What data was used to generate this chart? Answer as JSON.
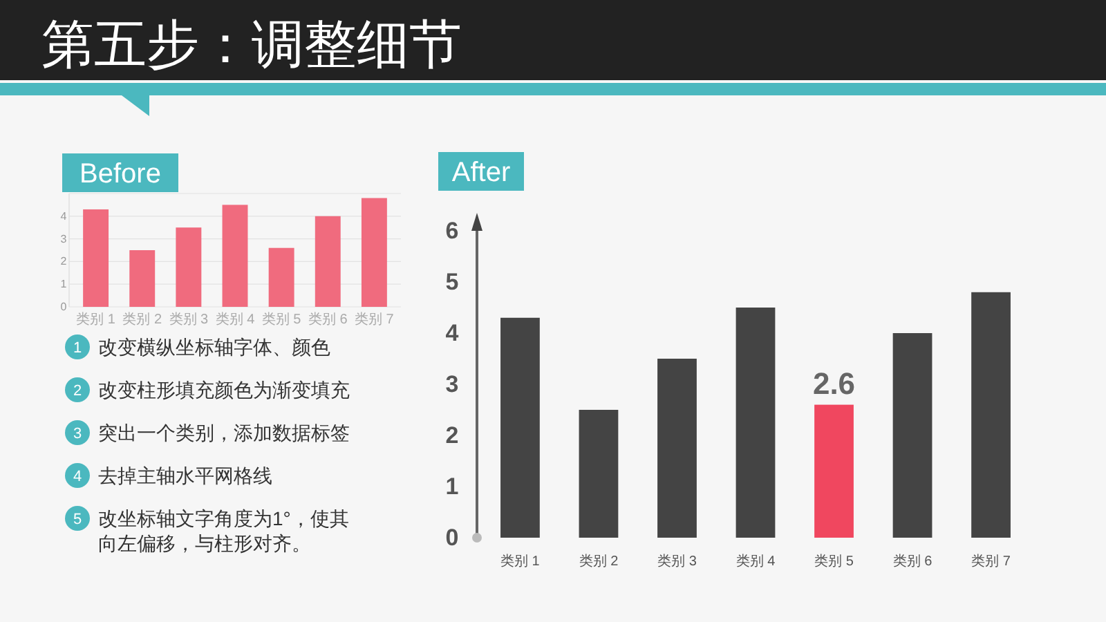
{
  "chart_data": [
    {
      "type": "other",
      "title": "第五步：调整细节"
    },
    {
      "type": "bar",
      "title": "Before",
      "categories": [
        "类别 1",
        "类别 2",
        "类别 3",
        "类别 4",
        "类别 5",
        "类别 6",
        "类别 7"
      ],
      "values": [
        4.3,
        2.5,
        3.5,
        4.5,
        2.6,
        4.0,
        4.8
      ],
      "color": "#f06b7e",
      "ylim": [
        0,
        5
      ],
      "yticks": [
        0,
        1,
        2,
        3,
        4
      ],
      "grid": "y",
      "annotations": [
        "1",
        "改变横纵坐标轴字体、颜色",
        "2",
        "改变柱形填充颜色为渐变填充",
        "3",
        "突出一个类别，添加数据标签",
        "4",
        "去掉主轴水平网格线",
        "5",
        "改坐标轴文字角度为1°，使其向左偏移，与柱形对齐。"
      ]
    },
    {
      "type": "bar",
      "title": "After",
      "categories": [
        "类别 1",
        "类别 2",
        "类别 3",
        "类别 4",
        "类别 5",
        "类别 6",
        "类别 7"
      ],
      "values": [
        4.3,
        2.5,
        3.5,
        4.5,
        2.6,
        4.0,
        4.8
      ],
      "colors": [
        "#444444",
        "#444444",
        "#444444",
        "#444444",
        "#f0475f",
        "#444444",
        "#444444"
      ],
      "value_labels": [
        null,
        null,
        null,
        null,
        "2.6",
        null,
        null
      ],
      "ylim": [
        0,
        6
      ],
      "yticks": [
        0,
        1,
        2,
        3,
        4,
        5,
        6
      ],
      "grid": false
    }
  ]
}
